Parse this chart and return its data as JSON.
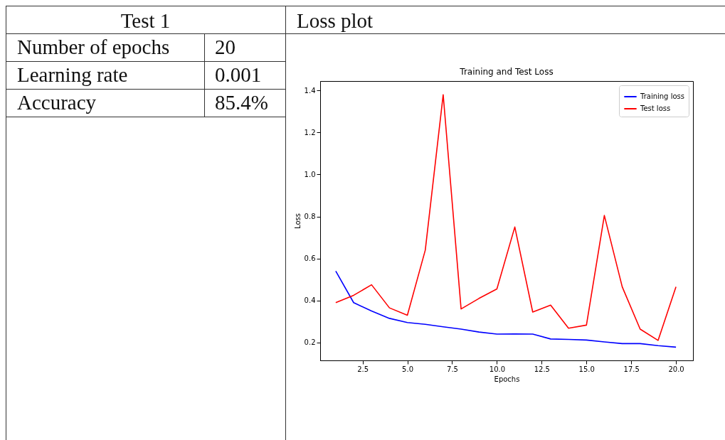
{
  "chart_data": [
    {
      "type": "other",
      "title": "Test 1",
      "annotations": [
        "Number of epochs",
        "20",
        "Learning rate",
        "0.001",
        "Accuracy",
        "85.4%"
      ]
    },
    {
      "type": "line",
      "subtitle": "Loss plot",
      "title": "Training and Test Loss",
      "xlabel": "Epochs",
      "ylabel": "Loss",
      "x": [
        1,
        2,
        3,
        4,
        5,
        6,
        7,
        8,
        9,
        10,
        11,
        12,
        13,
        14,
        15,
        16,
        17,
        18,
        19,
        20
      ],
      "series": [
        {
          "name": "Training loss",
          "color": "#0000ff",
          "values": [
            0.54,
            0.39,
            0.35,
            0.315,
            0.295,
            0.287,
            0.275,
            0.264,
            0.25,
            0.24,
            0.241,
            0.24,
            0.217,
            0.215,
            0.212,
            0.203,
            0.195,
            0.195,
            0.185,
            0.178
          ]
        },
        {
          "name": "Test loss",
          "color": "#ff0000",
          "values": [
            0.39,
            0.425,
            0.475,
            0.365,
            0.33,
            0.64,
            1.38,
            0.36,
            0.41,
            0.455,
            0.75,
            0.345,
            0.378,
            0.268,
            0.283,
            0.805,
            0.465,
            0.264,
            0.21,
            0.465
          ]
        }
      ],
      "xlim": [
        0.13,
        20.95
      ],
      "xticks": [
        2.5,
        {
          "value": 5,
          "label": "5.0"
        },
        7.5,
        {
          "value": 10,
          "label": "10.0"
        },
        12.5,
        {
          "value": 15,
          "label": "15.0"
        },
        17.5,
        {
          "value": 20,
          "label": "20.0"
        }
      ],
      "ylim": [
        0.115,
        1.445
      ],
      "yticks": [
        0.2,
        0.4,
        0.6,
        0.8,
        {
          "value": 1,
          "label": "1.0"
        },
        1.2,
        1.4
      ],
      "grid": false,
      "legend": "top right",
      "marker": "none",
      "line_style": "solid"
    }
  ]
}
